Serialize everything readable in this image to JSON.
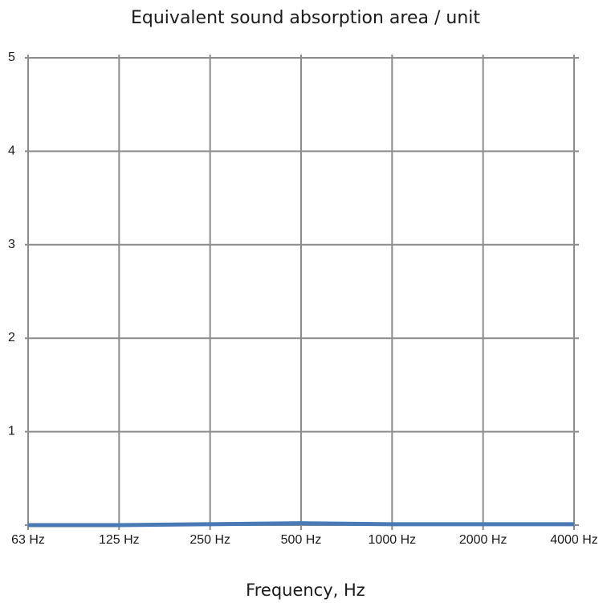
{
  "chart_data": {
    "type": "line",
    "title": "Equivalent sound absorption area / unit",
    "xlabel": "Frequency, Hz",
    "ylabel": "",
    "categories": [
      "63 Hz",
      "125 Hz",
      "250 Hz",
      "500 Hz",
      "1000 Hz",
      "2000 Hz",
      "4000 Hz"
    ],
    "yticks": [
      "",
      "1",
      "2",
      "3",
      "4",
      "5"
    ],
    "ylim": [
      0,
      5
    ],
    "grid": true,
    "legend": "none",
    "series": [
      {
        "values": [
          0.0,
          0.0,
          0.01,
          0.02,
          0.01,
          0.01,
          0.01
        ],
        "color": "#4a7ab5"
      }
    ],
    "colors": {
      "grid": "#8c8c8c",
      "line": "#4a7ab5",
      "text": "#1a1a1a"
    }
  }
}
